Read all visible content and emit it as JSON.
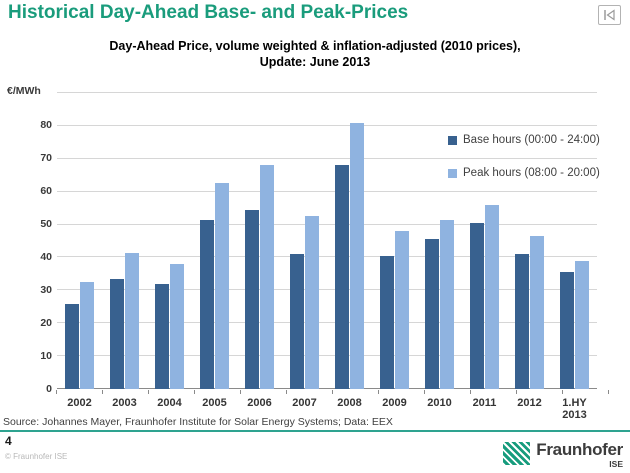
{
  "header": {
    "title": "Historical Day-Ahead Base- and Peak-Prices",
    "nav_icon": "skip-to-start-icon"
  },
  "chart": {
    "subtitle_line1": "Day-Ahead Price, volume weighted & inflation-adjusted (2010 prices),",
    "subtitle_line2": "Update: June 2013",
    "unit_label": "€/MWh"
  },
  "chart_data": {
    "type": "bar",
    "title": "Day-Ahead Price, volume weighted & inflation-adjusted (2010 prices), Update: June 2013",
    "xlabel": "",
    "ylabel": "€/MWh",
    "ylim": [
      0,
      90
    ],
    "y_ticks": [
      0,
      10,
      20,
      30,
      40,
      50,
      60,
      70,
      80
    ],
    "grid": true,
    "legend_position": "inside-top-right",
    "categories": [
      "2002",
      "2003",
      "2004",
      "2005",
      "2006",
      "2007",
      "2008",
      "2009",
      "2010",
      "2011",
      "2012",
      "1.HY 2013"
    ],
    "series": [
      {
        "name": "Base hours (00:00 - 24:00)",
        "color": "#38618F",
        "values": [
          26,
          33.5,
          32,
          51.5,
          54.5,
          41,
          68,
          40.5,
          45.5,
          50.5,
          41,
          35.5
        ]
      },
      {
        "name": "Peak hours (08:00 - 20:00)",
        "color": "#8FB3E0",
        "values": [
          32.5,
          41.5,
          38,
          62.5,
          68,
          52.5,
          81,
          48,
          51.5,
          56,
          46.5,
          39
        ]
      }
    ]
  },
  "footer": {
    "source": "Source: Johannes Mayer, Fraunhofer Institute for Solar Energy Systems; Data: EEX",
    "page_number": "4",
    "copyright": "© Fraunhofer ISE",
    "logo_text": "Fraunhofer",
    "logo_sub": "ISE"
  },
  "colors": {
    "title_green": "#1A9C7C",
    "accent_line": "#2EA390",
    "base_bar": "#38618F",
    "peak_bar": "#8FB3E0",
    "gridline": "#D6D6D6",
    "axis": "#8A8A8A"
  }
}
